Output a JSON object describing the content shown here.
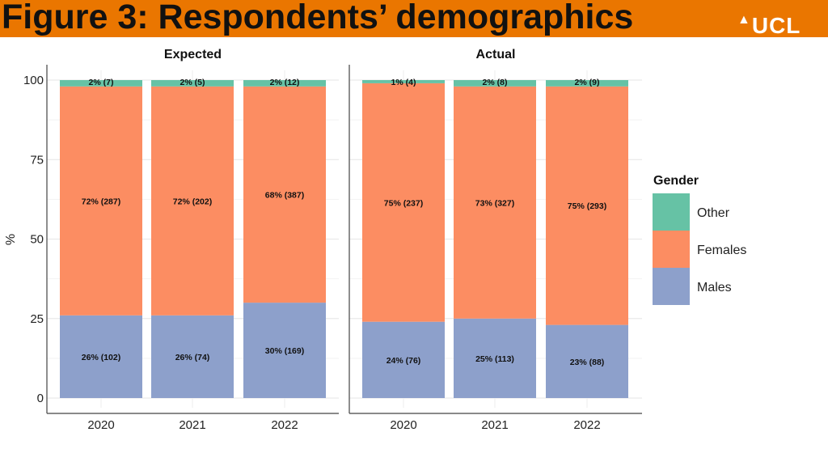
{
  "header": {
    "title": "Figure 3: Respondents’ demographics",
    "logo": "UCL"
  },
  "chart_data": {
    "type": "bar",
    "stacked": true,
    "ylabel": "%",
    "ylim": [
      0,
      100
    ],
    "yticks": [
      "0",
      "25",
      "50",
      "75",
      "100"
    ],
    "legend": {
      "title": "Gender",
      "placement": "right",
      "entries": [
        "Other",
        "Females",
        "Males"
      ]
    },
    "colors": {
      "Other": "#66c2a5",
      "Females": "#fc8d62",
      "Males": "#8da0cb"
    },
    "panels": [
      {
        "title": "Expected",
        "categories": [
          "2020",
          "2021",
          "2022"
        ],
        "series": [
          {
            "name": "Males",
            "values": [
              26,
              26,
              30
            ],
            "labels": [
              "26% (102)",
              "26% (74)",
              "30% (169)"
            ]
          },
          {
            "name": "Females",
            "values": [
              72,
              72,
              68
            ],
            "labels": [
              "72% (287)",
              "72% (202)",
              "68% (387)"
            ]
          },
          {
            "name": "Other",
            "values": [
              2,
              2,
              2
            ],
            "labels": [
              "2% (7)",
              "2% (5)",
              "2% (12)"
            ]
          }
        ]
      },
      {
        "title": "Actual",
        "categories": [
          "2020",
          "2021",
          "2022"
        ],
        "series": [
          {
            "name": "Males",
            "values": [
              24,
              25,
              23
            ],
            "labels": [
              "24% (76)",
              "25% (113)",
              "23% (88)"
            ]
          },
          {
            "name": "Females",
            "values": [
              75,
              73,
              75
            ],
            "labels": [
              "75% (237)",
              "73% (327)",
              "75% (293)"
            ]
          },
          {
            "name": "Other",
            "values": [
              1,
              2,
              2
            ],
            "labels": [
              "1% (4)",
              "2% (8)",
              "2% (9)"
            ]
          }
        ]
      }
    ]
  }
}
